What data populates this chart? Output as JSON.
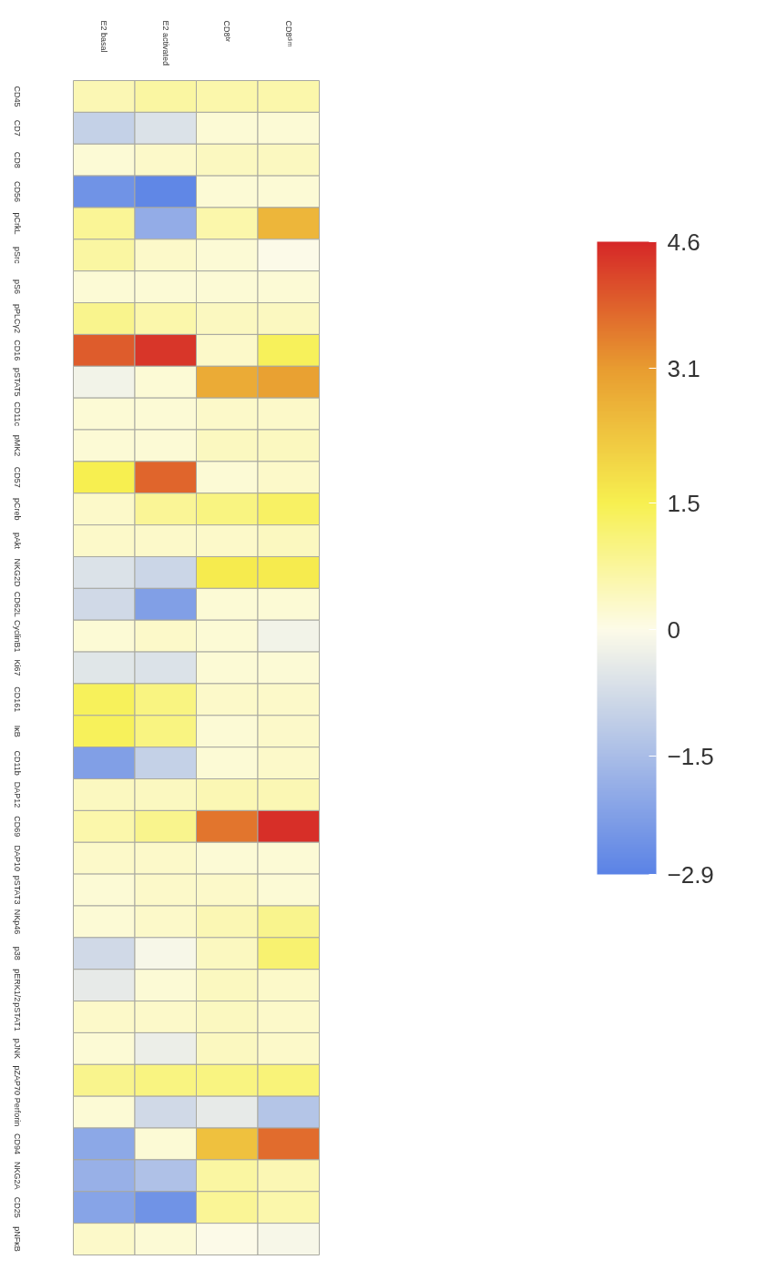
{
  "chart_data": {
    "type": "heatmap",
    "categories": [
      "E2 basal",
      "E2 activated",
      "CD8ᵇʳ",
      "CD8ᵈⁱᵐ"
    ],
    "y_categories": [
      "CD45",
      "CD7",
      "CD8",
      "CD56",
      "pCrkL",
      "pSrc",
      "pS6",
      "pPLCγ2",
      "CD16",
      "pSTAT5",
      "CD11c",
      "pMK2",
      "CD57",
      "pCreb",
      "pAkt",
      "NKG2D",
      "CD62L",
      "CyclinB1",
      "Ki67",
      "CD161",
      "IκB",
      "CD11b",
      "DAP12",
      "CD69",
      "DAP10",
      "pSTAT3",
      "NKp46",
      "p38",
      "pERK1/2",
      "pSTAT1",
      "pJNK",
      "pZAP70",
      "Perforin",
      "CD94",
      "NKG2A",
      "CD25",
      "pNFκB"
    ],
    "cells": [
      [
        0.5,
        0.7,
        0.6,
        0.6
      ],
      [
        -1.0,
        -0.6,
        0.2,
        0.2
      ],
      [
        0.2,
        0.3,
        0.4,
        0.4
      ],
      [
        -2.5,
        -2.8,
        0.2,
        0.2
      ],
      [
        0.8,
        -1.9,
        0.6,
        2.6
      ],
      [
        0.7,
        0.3,
        0.2,
        0.0
      ],
      [
        0.2,
        0.2,
        0.2,
        0.2
      ],
      [
        0.9,
        0.6,
        0.4,
        0.4
      ],
      [
        3.9,
        4.4,
        0.3,
        1.4
      ],
      [
        -0.2,
        0.2,
        2.8,
        3.0
      ],
      [
        0.2,
        0.2,
        0.3,
        0.3
      ],
      [
        0.2,
        0.2,
        0.4,
        0.4
      ],
      [
        1.5,
        3.8,
        0.2,
        0.3
      ],
      [
        0.3,
        0.8,
        1.0,
        1.3
      ],
      [
        0.3,
        0.3,
        0.3,
        0.4
      ],
      [
        -0.6,
        -0.9,
        1.6,
        1.6
      ],
      [
        -0.8,
        -2.2,
        0.2,
        0.2
      ],
      [
        0.2,
        0.3,
        0.2,
        -0.2
      ],
      [
        -0.5,
        -0.6,
        0.2,
        0.2
      ],
      [
        1.4,
        1.0,
        0.3,
        0.3
      ],
      [
        1.4,
        1.0,
        0.2,
        0.3
      ],
      [
        -2.2,
        -1.0,
        0.2,
        0.3
      ],
      [
        0.4,
        0.4,
        0.5,
        0.5
      ],
      [
        0.6,
        0.9,
        3.6,
        4.5
      ],
      [
        0.3,
        0.3,
        0.2,
        0.2
      ],
      [
        0.2,
        0.3,
        0.3,
        0.2
      ],
      [
        0.2,
        0.3,
        0.5,
        0.9
      ],
      [
        -0.8,
        -0.1,
        0.4,
        1.2
      ],
      [
        -0.4,
        0.2,
        0.4,
        0.3
      ],
      [
        0.3,
        0.3,
        0.4,
        0.3
      ],
      [
        0.2,
        -0.3,
        0.4,
        0.3
      ],
      [
        0.9,
        1.0,
        1.0,
        1.1
      ],
      [
        0.2,
        -0.8,
        -0.4,
        -1.3
      ],
      [
        -2.0,
        0.2,
        2.4,
        3.7
      ],
      [
        -1.8,
        -1.4,
        0.7,
        0.5
      ],
      [
        -2.1,
        -2.5,
        0.8,
        0.6
      ],
      [
        0.3,
        0.2,
        0.0,
        -0.1
      ]
    ],
    "clim": [
      -2.9,
      4.6
    ],
    "cticks": [
      {
        "value": -2.9,
        "label": "−2.9"
      },
      {
        "value": -1.5,
        "label": "−1.5"
      },
      0,
      1.5,
      3.1,
      4.6
    ]
  }
}
